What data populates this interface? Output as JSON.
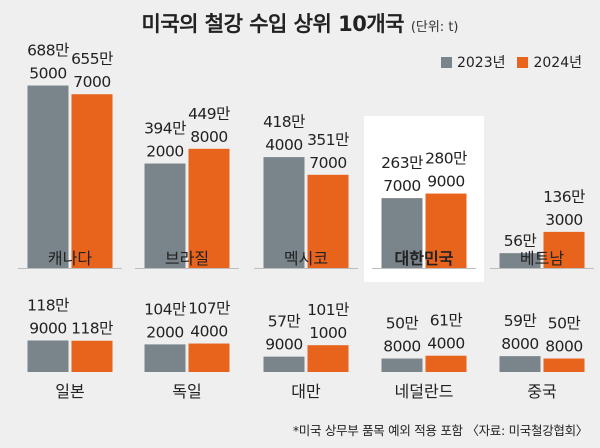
{
  "title": "미국의 철강 수입 상위 10개국",
  "unit": "(단위: t)",
  "legend": [
    {
      "name": "2023년",
      "color": "#7a848b"
    },
    {
      "name": "2024년",
      "color": "#e8631b"
    }
  ],
  "footnote": "*미국 상무부 품목 예외 적용 포함 〈자료: 미국철강협회〉",
  "highlight_color": "#ffffff",
  "chart_data": {
    "type": "bar",
    "unit": "t",
    "series": [
      {
        "name": "2023년",
        "color": "#7a848b"
      },
      {
        "name": "2024년",
        "color": "#e8631b"
      }
    ],
    "countries": [
      {
        "name": "캐나다",
        "values": [
          6885000,
          6557000
        ],
        "labels": [
          [
            "688만",
            "5000"
          ],
          [
            "655만",
            "7000"
          ]
        ],
        "highlight": false
      },
      {
        "name": "브라질",
        "values": [
          3942000,
          4498000
        ],
        "labels": [
          [
            "394만",
            "2000"
          ],
          [
            "449만",
            "8000"
          ]
        ],
        "highlight": false
      },
      {
        "name": "멕시코",
        "values": [
          4184000,
          3517000
        ],
        "labels": [
          [
            "418만",
            "4000"
          ],
          [
            "351만",
            "7000"
          ]
        ],
        "highlight": false
      },
      {
        "name": "대한민국",
        "values": [
          2637000,
          2809000
        ],
        "labels": [
          [
            "263만",
            "7000"
          ],
          [
            "280만",
            "9000"
          ]
        ],
        "highlight": true
      },
      {
        "name": "베트남",
        "values": [
          560000,
          1363000
        ],
        "labels": [
          [
            "56만"
          ],
          [
            "136만",
            "3000"
          ]
        ],
        "highlight": false
      },
      {
        "name": "일본",
        "values": [
          1189000,
          1180000
        ],
        "labels": [
          [
            "118만",
            "9000"
          ],
          [
            "118만"
          ]
        ],
        "highlight": false
      },
      {
        "name": "독일",
        "values": [
          1042000,
          1074000
        ],
        "labels": [
          [
            "104만",
            "2000"
          ],
          [
            "107만",
            "4000"
          ]
        ],
        "highlight": false
      },
      {
        "name": "대만",
        "values": [
          579000,
          1011000
        ],
        "labels": [
          [
            "57만",
            "9000"
          ],
          [
            "101만",
            "1000"
          ]
        ],
        "highlight": false
      },
      {
        "name": "네덜란드",
        "values": [
          508000,
          614000
        ],
        "labels": [
          [
            "50만",
            "8000"
          ],
          [
            "61만",
            "4000"
          ]
        ],
        "highlight": false
      },
      {
        "name": "중국",
        "values": [
          598000,
          508000
        ],
        "labels": [
          [
            "59만",
            "8000"
          ],
          [
            "50만",
            "8000"
          ]
        ],
        "highlight": false
      }
    ]
  }
}
